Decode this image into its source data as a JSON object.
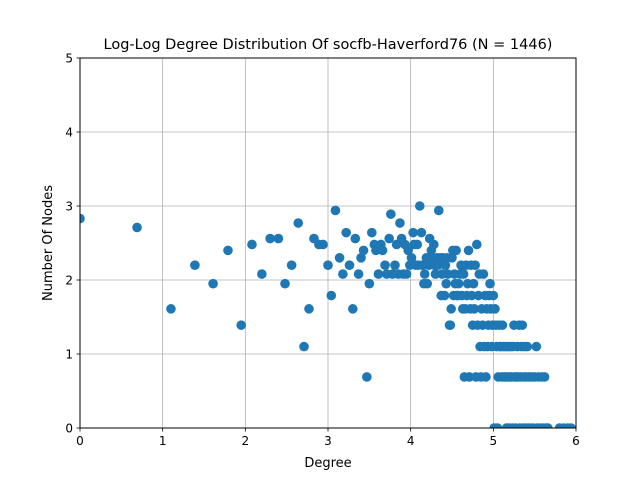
{
  "chart_data": {
    "type": "scatter",
    "title": "Log-Log Degree Distribution Of socfb-Haverford76 (N = 1446)",
    "xlabel": "Degree",
    "ylabel": "Number Of Nodes",
    "xlim": [
      0,
      6
    ],
    "ylim": [
      0,
      5
    ],
    "xticks": [
      "0",
      "1",
      "2",
      "3",
      "4",
      "5",
      "6"
    ],
    "yticks": [
      "0",
      "1",
      "2",
      "3",
      "4",
      "5"
    ],
    "grid": true,
    "marker_color": "#1f77b4",
    "points": [
      [
        0.0,
        2.83
      ],
      [
        0.69,
        2.71
      ],
      [
        1.1,
        1.61
      ],
      [
        1.39,
        2.2
      ],
      [
        1.61,
        1.95
      ],
      [
        1.79,
        2.4
      ],
      [
        1.95,
        1.39
      ],
      [
        2.08,
        2.48
      ],
      [
        2.2,
        2.08
      ],
      [
        2.3,
        2.56
      ],
      [
        2.4,
        2.56
      ],
      [
        2.48,
        1.95
      ],
      [
        2.56,
        2.2
      ],
      [
        2.64,
        2.77
      ],
      [
        2.71,
        1.1
      ],
      [
        2.77,
        1.61
      ],
      [
        2.83,
        2.56
      ],
      [
        2.89,
        2.48
      ],
      [
        2.94,
        2.48
      ],
      [
        3.0,
        2.2
      ],
      [
        3.04,
        1.79
      ],
      [
        3.09,
        2.94
      ],
      [
        3.14,
        2.3
      ],
      [
        3.18,
        2.08
      ],
      [
        3.22,
        2.64
      ],
      [
        3.26,
        2.2
      ],
      [
        3.3,
        1.61
      ],
      [
        3.33,
        2.56
      ],
      [
        3.37,
        2.08
      ],
      [
        3.4,
        2.3
      ],
      [
        3.43,
        2.4
      ],
      [
        3.47,
        0.69
      ],
      [
        3.5,
        1.95
      ],
      [
        3.53,
        2.64
      ],
      [
        3.56,
        2.48
      ],
      [
        3.58,
        2.4
      ],
      [
        3.61,
        2.08
      ],
      [
        3.64,
        2.48
      ],
      [
        3.66,
        2.4
      ],
      [
        3.69,
        2.2
      ],
      [
        3.71,
        2.08
      ],
      [
        3.74,
        2.56
      ],
      [
        3.76,
        2.89
      ],
      [
        3.78,
        2.08
      ],
      [
        3.81,
        2.2
      ],
      [
        3.83,
        2.48
      ],
      [
        3.85,
        2.08
      ],
      [
        3.87,
        2.77
      ],
      [
        3.89,
        2.56
      ],
      [
        3.91,
        2.08
      ],
      [
        3.93,
        2.48
      ],
      [
        3.95,
        2.08
      ],
      [
        3.97,
        2.4
      ],
      [
        3.99,
        2.2
      ],
      [
        4.01,
        2.3
      ],
      [
        4.03,
        2.64
      ],
      [
        4.04,
        2.48
      ],
      [
        4.06,
        2.2
      ],
      [
        4.08,
        2.48
      ],
      [
        4.09,
        2.2
      ],
      [
        4.11,
        3.0
      ],
      [
        4.13,
        2.64
      ],
      [
        4.14,
        2.2
      ],
      [
        4.16,
        1.95
      ],
      [
        4.17,
        2.08
      ],
      [
        4.19,
        2.3
      ],
      [
        4.2,
        1.95
      ],
      [
        4.22,
        2.2
      ],
      [
        4.23,
        2.56
      ],
      [
        4.25,
        2.4
      ],
      [
        4.26,
        2.3
      ],
      [
        4.28,
        2.48
      ],
      [
        4.29,
        2.2
      ],
      [
        4.3,
        2.08
      ],
      [
        4.32,
        2.3
      ],
      [
        4.33,
        2.2
      ],
      [
        4.34,
        2.94
      ],
      [
        4.36,
        2.3
      ],
      [
        4.37,
        1.79
      ],
      [
        4.38,
        2.08
      ],
      [
        4.39,
        2.3
      ],
      [
        4.41,
        1.79
      ],
      [
        4.42,
        2.2
      ],
      [
        4.43,
        1.95
      ],
      [
        4.44,
        2.3
      ],
      [
        4.45,
        2.08
      ],
      [
        4.47,
        1.39
      ],
      [
        4.48,
        1.39
      ],
      [
        4.49,
        1.61
      ],
      [
        4.5,
        2.3
      ],
      [
        4.51,
        2.4
      ],
      [
        4.52,
        1.79
      ],
      [
        4.53,
        2.08
      ],
      [
        4.54,
        1.95
      ],
      [
        4.55,
        2.4
      ],
      [
        4.56,
        1.79
      ],
      [
        4.57,
        1.79
      ],
      [
        4.58,
        1.95
      ],
      [
        4.6,
        2.08
      ],
      [
        4.61,
        2.2
      ],
      [
        4.62,
        1.79
      ],
      [
        4.63,
        1.61
      ],
      [
        4.64,
        2.08
      ],
      [
        4.65,
        0.69
      ],
      [
        4.66,
        1.61
      ],
      [
        4.67,
        2.2
      ],
      [
        4.68,
        1.79
      ],
      [
        4.69,
        1.95
      ],
      [
        4.7,
        2.4
      ],
      [
        4.71,
        0.69
      ],
      [
        4.72,
        1.61
      ],
      [
        4.73,
        2.2
      ],
      [
        4.74,
        1.79
      ],
      [
        4.75,
        1.39
      ],
      [
        4.76,
        1.95
      ],
      [
        4.77,
        1.61
      ],
      [
        4.78,
        2.2
      ],
      [
        4.79,
        0.69
      ],
      [
        4.8,
        2.48
      ],
      [
        4.81,
        1.39
      ],
      [
        4.82,
        1.79
      ],
      [
        4.83,
        2.08
      ],
      [
        4.84,
        1.1
      ],
      [
        4.85,
        0.69
      ],
      [
        4.86,
        1.61
      ],
      [
        4.87,
        1.39
      ],
      [
        4.88,
        2.08
      ],
      [
        4.89,
        1.1
      ],
      [
        4.9,
        1.79
      ],
      [
        4.91,
        0.69
      ],
      [
        4.92,
        1.61
      ],
      [
        4.93,
        1.1
      ],
      [
        4.94,
        1.39
      ],
      [
        4.95,
        1.79
      ],
      [
        4.96,
        1.95
      ],
      [
        4.97,
        1.61
      ],
      [
        4.98,
        1.1
      ],
      [
        4.99,
        1.39
      ],
      [
        5.0,
        1.79
      ],
      [
        5.01,
        0.0
      ],
      [
        5.02,
        1.61
      ],
      [
        5.03,
        1.39
      ],
      [
        5.04,
        1.1
      ],
      [
        5.05,
        0.0
      ],
      [
        5.06,
        0.69
      ],
      [
        5.07,
        1.39
      ],
      [
        5.08,
        1.1
      ],
      [
        5.09,
        1.1
      ],
      [
        5.1,
        0.69
      ],
      [
        5.11,
        1.39
      ],
      [
        5.12,
        1.1
      ],
      [
        5.13,
        0.69
      ],
      [
        5.14,
        0.69
      ],
      [
        5.15,
        1.1
      ],
      [
        5.16,
        0.0
      ],
      [
        5.17,
        0.69
      ],
      [
        5.18,
        1.1
      ],
      [
        5.19,
        0.0
      ],
      [
        5.2,
        0.69
      ],
      [
        5.21,
        1.1
      ],
      [
        5.22,
        0.69
      ],
      [
        5.23,
        0.0
      ],
      [
        5.24,
        1.1
      ],
      [
        5.25,
        1.39
      ],
      [
        5.26,
        0.69
      ],
      [
        5.27,
        0.0
      ],
      [
        5.28,
        0.69
      ],
      [
        5.29,
        1.1
      ],
      [
        5.3,
        0.69
      ],
      [
        5.31,
        1.39
      ],
      [
        5.32,
        0.0
      ],
      [
        5.33,
        0.69
      ],
      [
        5.34,
        1.1
      ],
      [
        5.35,
        1.39
      ],
      [
        5.36,
        0.0
      ],
      [
        5.37,
        0.69
      ],
      [
        5.38,
        1.1
      ],
      [
        5.39,
        0.0
      ],
      [
        5.4,
        0.69
      ],
      [
        5.41,
        1.1
      ],
      [
        5.42,
        0.0
      ],
      [
        5.43,
        0.69
      ],
      [
        5.45,
        0.0
      ],
      [
        5.46,
        0.69
      ],
      [
        5.48,
        0.0
      ],
      [
        5.5,
        0.69
      ],
      [
        5.52,
        1.1
      ],
      [
        5.53,
        0.0
      ],
      [
        5.55,
        0.69
      ],
      [
        5.57,
        0.0
      ],
      [
        5.59,
        0.69
      ],
      [
        5.6,
        0.0
      ],
      [
        5.62,
        0.69
      ],
      [
        5.64,
        0.0
      ],
      [
        5.66,
        0.0
      ],
      [
        5.8,
        0.0
      ],
      [
        5.85,
        0.0
      ],
      [
        5.9,
        0.0
      ],
      [
        5.94,
        0.0
      ]
    ]
  }
}
